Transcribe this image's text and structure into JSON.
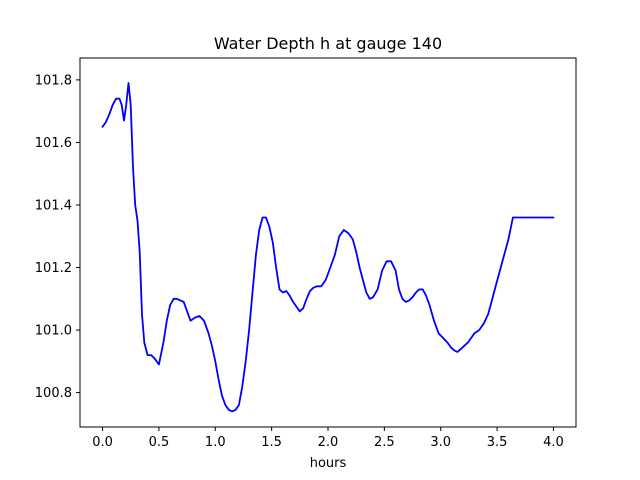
{
  "chart_data": {
    "type": "line",
    "title": "Water Depth h at gauge 140",
    "xlabel": "hours",
    "ylabel": "",
    "xlim": [
      -0.2,
      4.2
    ],
    "ylim": [
      100.69,
      101.87
    ],
    "xticks": [
      0.0,
      0.5,
      1.0,
      1.5,
      2.0,
      2.5,
      3.0,
      3.5,
      4.0
    ],
    "xtick_labels": [
      "0.0",
      "0.5",
      "1.0",
      "1.5",
      "2.0",
      "2.5",
      "3.0",
      "3.5",
      "4.0"
    ],
    "yticks": [
      100.8,
      101.0,
      101.2,
      101.4,
      101.6,
      101.8
    ],
    "ytick_labels": [
      "100.8",
      "101.0",
      "101.2",
      "101.4",
      "101.6",
      "101.8"
    ],
    "grid": false,
    "series": [
      {
        "color": "#0000ff",
        "x": [
          0.0,
          0.03,
          0.06,
          0.09,
          0.12,
          0.15,
          0.17,
          0.19,
          0.21,
          0.23,
          0.25,
          0.27,
          0.29,
          0.31,
          0.33,
          0.35,
          0.37,
          0.4,
          0.43,
          0.46,
          0.5,
          0.54,
          0.57,
          0.6,
          0.63,
          0.66,
          0.69,
          0.72,
          0.75,
          0.78,
          0.82,
          0.86,
          0.9,
          0.94,
          0.97,
          1.0,
          1.03,
          1.06,
          1.09,
          1.12,
          1.15,
          1.18,
          1.21,
          1.24,
          1.27,
          1.3,
          1.33,
          1.36,
          1.39,
          1.42,
          1.45,
          1.48,
          1.51,
          1.54,
          1.57,
          1.6,
          1.63,
          1.66,
          1.69,
          1.72,
          1.75,
          1.78,
          1.81,
          1.84,
          1.87,
          1.9,
          1.94,
          1.98,
          2.02,
          2.06,
          2.1,
          2.14,
          2.18,
          2.22,
          2.25,
          2.28,
          2.31,
          2.34,
          2.37,
          2.4,
          2.44,
          2.48,
          2.52,
          2.56,
          2.6,
          2.63,
          2.66,
          2.69,
          2.72,
          2.75,
          2.78,
          2.81,
          2.84,
          2.87,
          2.9,
          2.94,
          2.98,
          3.02,
          3.06,
          3.09,
          3.12,
          3.15,
          3.18,
          3.21,
          3.24,
          3.27,
          3.3,
          3.34,
          3.38,
          3.42,
          3.45,
          3.48,
          3.51,
          3.54,
          3.57,
          3.6,
          3.64,
          3.68,
          3.72,
          3.76,
          3.8,
          3.84,
          3.88,
          3.92,
          3.96,
          4.0
        ],
        "y": [
          101.65,
          101.665,
          101.69,
          101.72,
          101.74,
          101.74,
          101.72,
          101.67,
          101.72,
          101.79,
          101.72,
          101.52,
          101.4,
          101.35,
          101.25,
          101.05,
          100.96,
          100.92,
          100.92,
          100.91,
          100.89,
          100.96,
          101.03,
          101.08,
          101.1,
          101.1,
          101.095,
          101.09,
          101.06,
          101.03,
          101.04,
          101.045,
          101.03,
          100.99,
          100.95,
          100.9,
          100.84,
          100.79,
          100.76,
          100.745,
          100.74,
          100.745,
          100.76,
          100.82,
          100.9,
          101.0,
          101.12,
          101.24,
          101.32,
          101.36,
          101.36,
          101.33,
          101.28,
          101.2,
          101.13,
          101.12,
          101.125,
          101.11,
          101.09,
          101.075,
          101.06,
          101.07,
          101.1,
          101.125,
          101.135,
          101.14,
          101.14,
          101.16,
          101.2,
          101.24,
          101.3,
          101.32,
          101.31,
          101.29,
          101.25,
          101.2,
          101.16,
          101.12,
          101.1,
          101.105,
          101.13,
          101.19,
          101.22,
          101.22,
          101.19,
          101.13,
          101.1,
          101.09,
          101.095,
          101.105,
          101.12,
          101.13,
          101.13,
          101.11,
          101.08,
          101.03,
          100.99,
          100.975,
          100.96,
          100.945,
          100.935,
          100.93,
          100.94,
          100.95,
          100.96,
          100.975,
          100.99,
          101.0,
          101.02,
          101.05,
          101.09,
          101.13,
          101.17,
          101.21,
          101.25,
          101.29,
          101.36,
          101.36,
          101.36,
          101.36,
          101.36,
          101.36,
          101.36,
          101.36,
          101.36,
          101.36
        ]
      }
    ]
  }
}
